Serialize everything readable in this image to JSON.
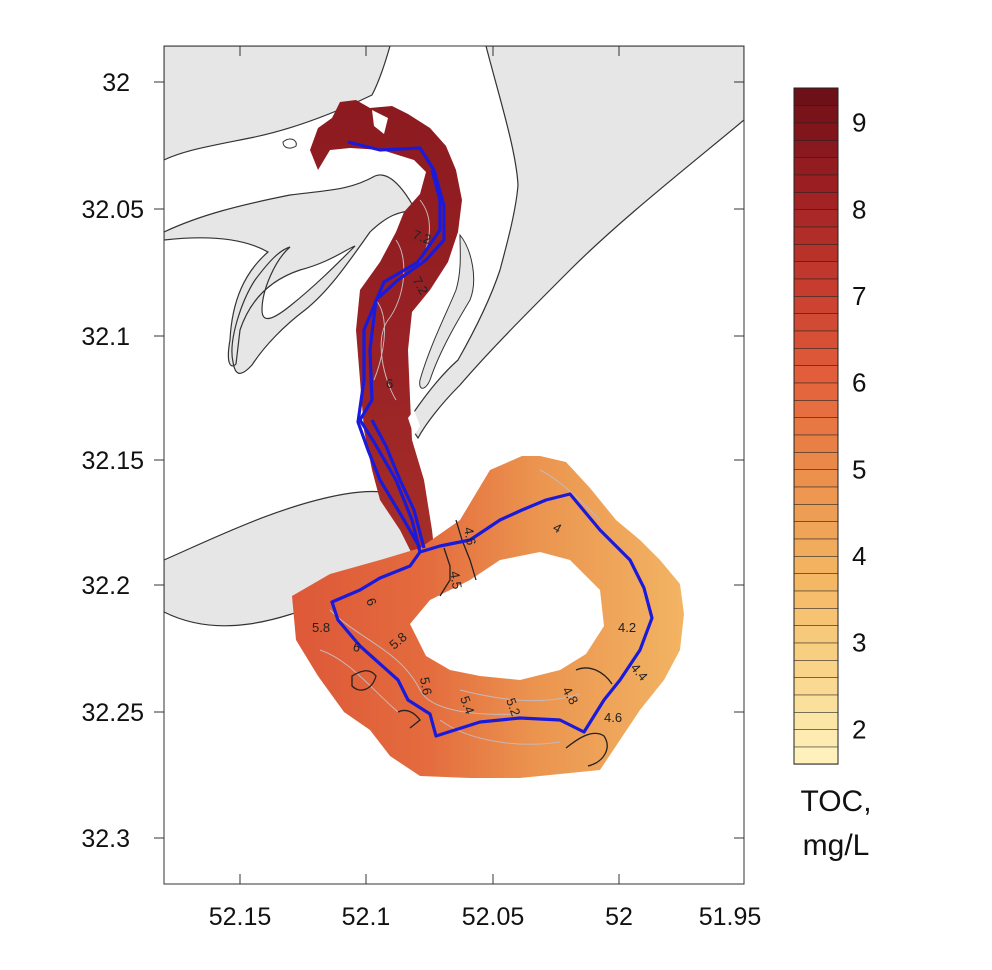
{
  "map": {
    "x_ticks": [
      "52.15",
      "52.1",
      "52.05",
      "52",
      "51.95"
    ],
    "y_ticks": [
      "32",
      "32.05",
      "32.1",
      "32.15",
      "32.2",
      "32.25",
      "32.3"
    ],
    "colors": {
      "land": "#e6e6e6",
      "coast": "#333333",
      "route": "#1a1adb",
      "contour_dark": "#222222",
      "contour_light": "#c9b6b6"
    },
    "contour_labels": [
      "7.2",
      "7.2",
      "6",
      "4.6",
      "4",
      "4.5",
      "6",
      "5.8",
      "6",
      "5.8",
      "5.6",
      "5.4",
      "5.2",
      "4.8",
      "4.2",
      "4.4",
      "4.6"
    ]
  },
  "legend": {
    "title_line1": "TOC,",
    "title_line2": "mg/L",
    "tick_labels": [
      "9",
      "8",
      "7",
      "6",
      "5",
      "4",
      "3",
      "2"
    ],
    "tick_values": [
      9,
      8,
      7,
      6,
      5,
      4,
      3,
      2
    ],
    "min": 1.6,
    "max": 9.4,
    "n_bins": 39,
    "color_stops": [
      "#fff4c0",
      "#f9d487",
      "#f3b461",
      "#eb8f4c",
      "#e35f3a",
      "#c43a2e",
      "#9c1f22",
      "#6a0f16"
    ]
  }
}
